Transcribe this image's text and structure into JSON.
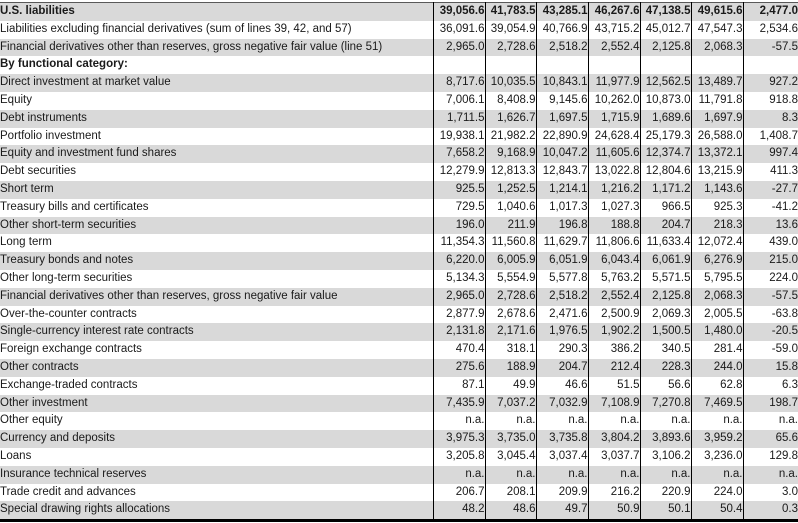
{
  "colors": {
    "stripe_gray": "#d9d9d9",
    "grid_black": "#000000",
    "text": "#1a1a1a"
  },
  "table": {
    "num_columns": 7,
    "rows": [
      {
        "label": "U.S. liabilities",
        "indent": 0,
        "bold": true,
        "values": [
          "39,056.6",
          "41,783.5",
          "43,285.1",
          "46,267.6",
          "47,138.5",
          "49,615.6",
          "2,477.0"
        ]
      },
      {
        "label": "Liabilities excluding financial derivatives (sum of lines 39, 42, and 57)",
        "indent": 1,
        "bold": false,
        "values": [
          "36,091.6",
          "39,054.9",
          "40,766.9",
          "43,715.2",
          "45,012.7",
          "47,547.3",
          "2,534.6"
        ]
      },
      {
        "label": "Financial derivatives other than reserves, gross negative fair value (line 51)",
        "indent": 1,
        "bold": false,
        "values": [
          "2,965.0",
          "2,728.6",
          "2,518.2",
          "2,552.4",
          "2,125.8",
          "2,068.3",
          "-57.5"
        ]
      },
      {
        "label": "By functional category:",
        "indent": 0,
        "bold": true,
        "values": [
          "",
          "",
          "",
          "",
          "",
          "",
          ""
        ]
      },
      {
        "label": "Direct investment at market value",
        "indent": 1,
        "bold": false,
        "values": [
          "8,717.6",
          "10,035.5",
          "10,843.1",
          "11,977.9",
          "12,562.5",
          "13,489.7",
          "927.2"
        ]
      },
      {
        "label": "Equity",
        "indent": 2,
        "bold": false,
        "values": [
          "7,006.1",
          "8,408.9",
          "9,145.6",
          "10,262.0",
          "10,873.0",
          "11,791.8",
          "918.8"
        ]
      },
      {
        "label": "Debt instruments",
        "indent": 2,
        "bold": false,
        "values": [
          "1,711.5",
          "1,626.7",
          "1,697.5",
          "1,715.9",
          "1,689.6",
          "1,697.9",
          "8.3"
        ]
      },
      {
        "label": "Portfolio investment",
        "indent": 1,
        "bold": false,
        "values": [
          "19,938.1",
          "21,982.2",
          "22,890.9",
          "24,628.4",
          "25,179.3",
          "26,588.0",
          "1,408.7"
        ]
      },
      {
        "label": "Equity and investment fund shares",
        "indent": 2,
        "bold": false,
        "values": [
          "7,658.2",
          "9,168.9",
          "10,047.2",
          "11,605.6",
          "12,374.7",
          "13,372.1",
          "997.4"
        ]
      },
      {
        "label": "Debt securities",
        "indent": 2,
        "bold": false,
        "values": [
          "12,279.9",
          "12,813.3",
          "12,843.7",
          "13,022.8",
          "12,804.6",
          "13,215.9",
          "411.3"
        ]
      },
      {
        "label": "Short term",
        "indent": 3,
        "bold": false,
        "values": [
          "925.5",
          "1,252.5",
          "1,214.1",
          "1,216.2",
          "1,171.2",
          "1,143.6",
          "-27.7"
        ]
      },
      {
        "label": "Treasury bills and certificates",
        "indent": 4,
        "bold": false,
        "values": [
          "729.5",
          "1,040.6",
          "1,017.3",
          "1,027.3",
          "966.5",
          "925.3",
          "-41.2"
        ]
      },
      {
        "label": "Other short-term securities",
        "indent": 4,
        "bold": false,
        "values": [
          "196.0",
          "211.9",
          "196.8",
          "188.8",
          "204.7",
          "218.3",
          "13.6"
        ]
      },
      {
        "label": "Long term",
        "indent": 3,
        "bold": false,
        "values": [
          "11,354.3",
          "11,560.8",
          "11,629.7",
          "11,806.6",
          "11,633.4",
          "12,072.4",
          "439.0"
        ]
      },
      {
        "label": "Treasury bonds and notes",
        "indent": 4,
        "bold": false,
        "values": [
          "6,220.0",
          "6,005.9",
          "6,051.9",
          "6,043.4",
          "6,061.9",
          "6,276.9",
          "215.0"
        ]
      },
      {
        "label": "Other long-term securities",
        "indent": 4,
        "bold": false,
        "values": [
          "5,134.3",
          "5,554.9",
          "5,577.8",
          "5,763.2",
          "5,571.5",
          "5,795.5",
          "224.0"
        ]
      },
      {
        "label": "Financial derivatives other than reserves, gross negative fair value",
        "indent": 1,
        "bold": false,
        "values": [
          "2,965.0",
          "2,728.6",
          "2,518.2",
          "2,552.4",
          "2,125.8",
          "2,068.3",
          "-57.5"
        ]
      },
      {
        "label": "Over-the-counter contracts",
        "indent": 2,
        "bold": false,
        "values": [
          "2,877.9",
          "2,678.6",
          "2,471.6",
          "2,500.9",
          "2,069.3",
          "2,005.5",
          "-63.8"
        ]
      },
      {
        "label": "Single-currency interest rate contracts",
        "indent": 3,
        "bold": false,
        "values": [
          "2,131.8",
          "2,171.6",
          "1,976.5",
          "1,902.2",
          "1,500.5",
          "1,480.0",
          "-20.5"
        ]
      },
      {
        "label": "Foreign exchange contracts",
        "indent": 3,
        "bold": false,
        "values": [
          "470.4",
          "318.1",
          "290.3",
          "386.2",
          "340.5",
          "281.4",
          "-59.0"
        ]
      },
      {
        "label": "Other contracts",
        "indent": 3,
        "bold": false,
        "values": [
          "275.6",
          "188.9",
          "204.7",
          "212.4",
          "228.3",
          "244.0",
          "15.8"
        ]
      },
      {
        "label": "Exchange-traded contracts",
        "indent": 2,
        "bold": false,
        "values": [
          "87.1",
          "49.9",
          "46.6",
          "51.5",
          "56.6",
          "62.8",
          "6.3"
        ]
      },
      {
        "label": "Other investment",
        "indent": 1,
        "bold": false,
        "values": [
          "7,435.9",
          "7,037.2",
          "7,032.9",
          "7,108.9",
          "7,270.8",
          "7,469.5",
          "198.7"
        ]
      },
      {
        "label": "Other equity",
        "indent": 2,
        "bold": false,
        "values": [
          "n.a.",
          "n.a.",
          "n.a.",
          "n.a.",
          "n.a.",
          "n.a.",
          "n.a."
        ]
      },
      {
        "label": "Currency and deposits",
        "indent": 2,
        "bold": false,
        "values": [
          "3,975.3",
          "3,735.0",
          "3,735.8",
          "3,804.2",
          "3,893.6",
          "3,959.2",
          "65.6"
        ]
      },
      {
        "label": "Loans",
        "indent": 2,
        "bold": false,
        "values": [
          "3,205.8",
          "3,045.4",
          "3,037.4",
          "3,037.7",
          "3,106.2",
          "3,236.0",
          "129.8"
        ]
      },
      {
        "label": "Insurance technical reserves",
        "indent": 2,
        "bold": false,
        "values": [
          "n.a.",
          "n.a.",
          "n.a.",
          "n.a.",
          "n.a.",
          "n.a.",
          "n.a."
        ]
      },
      {
        "label": "Trade credit and advances",
        "indent": 2,
        "bold": false,
        "values": [
          "206.7",
          "208.1",
          "209.9",
          "216.2",
          "220.9",
          "224.0",
          "3.0"
        ]
      },
      {
        "label": "Special drawing rights allocations",
        "indent": 2,
        "bold": false,
        "values": [
          "48.2",
          "48.6",
          "49.7",
          "50.9",
          "50.1",
          "50.4",
          "0.3"
        ]
      }
    ]
  }
}
